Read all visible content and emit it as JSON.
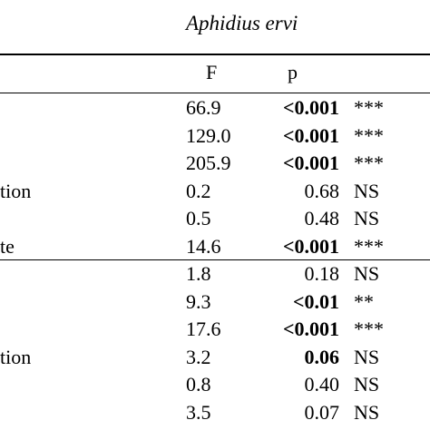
{
  "table": {
    "title": "Aphidius ervi",
    "header": {
      "f": "F",
      "p": "p"
    },
    "rows": [
      {
        "label": "",
        "f": "66.9",
        "p": "<0.001",
        "p_bold": true,
        "sig": "***"
      },
      {
        "label": "",
        "f": "129.0",
        "p": "<0.001",
        "p_bold": true,
        "sig": "***"
      },
      {
        "label": "",
        "f": "205.9",
        "p": "<0.001",
        "p_bold": true,
        "sig": "***"
      },
      {
        "label": "tion",
        "f": "0.2",
        "p": "0.68",
        "p_bold": false,
        "sig": "NS"
      },
      {
        "label": "",
        "f": "0.5",
        "p": "0.48",
        "p_bold": false,
        "sig": "NS"
      },
      {
        "label": "te",
        "f": "14.6",
        "p": "<0.001",
        "p_bold": true,
        "sig": "***"
      },
      {
        "label": "",
        "f": "1.8",
        "p": "0.18",
        "p_bold": false,
        "sig": "NS"
      },
      {
        "label": "",
        "f": "9.3",
        "p": "<0.01",
        "p_bold": true,
        "sig": "**"
      },
      {
        "label": "",
        "f": "17.6",
        "p": "<0.001",
        "p_bold": true,
        "sig": "***"
      },
      {
        "label": "tion",
        "f": "3.2",
        "p": "0.06",
        "p_bold": true,
        "sig": "NS"
      },
      {
        "label": "",
        "f": "0.8",
        "p": "0.40",
        "p_bold": false,
        "sig": "NS"
      },
      {
        "label": "",
        "f": "3.5",
        "p": "0.07",
        "p_bold": false,
        "sig": "NS"
      }
    ]
  }
}
